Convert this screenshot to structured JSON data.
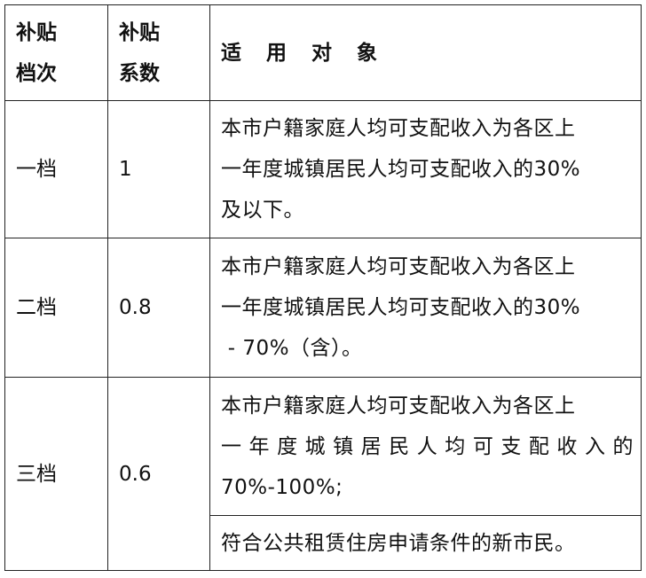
{
  "headers": {
    "tier": "补贴档次",
    "tier_l1": "补贴",
    "tier_l2": "档次",
    "coef_l1": "补贴",
    "coef_l2": "系数",
    "target": "适 用 对 象"
  },
  "rows": [
    {
      "tier": "一档",
      "coef": "1",
      "desc_l1": "本市户籍家庭人均可支配收入为各区上",
      "desc_l2": "一年度城镇居民人均可支配收入的30%",
      "desc_l3": "及以下。"
    },
    {
      "tier": "二档",
      "coef": "0.8",
      "desc_l1": "本市户籍家庭人均可支配收入为各区上",
      "desc_l2": "一年度城镇居民人均可支配收入的30%",
      "desc_l3": " - 70%（含）。"
    },
    {
      "tier": "三档",
      "coef": "0.6",
      "desc_l1": "本市户籍家庭人均可支配收入为各区上",
      "desc_l2": "一年度城镇居民人均可支配收入的",
      "desc_l3": "70%-100%;",
      "desc_extra": "符合公共租赁住房申请条件的新市民。"
    }
  ]
}
